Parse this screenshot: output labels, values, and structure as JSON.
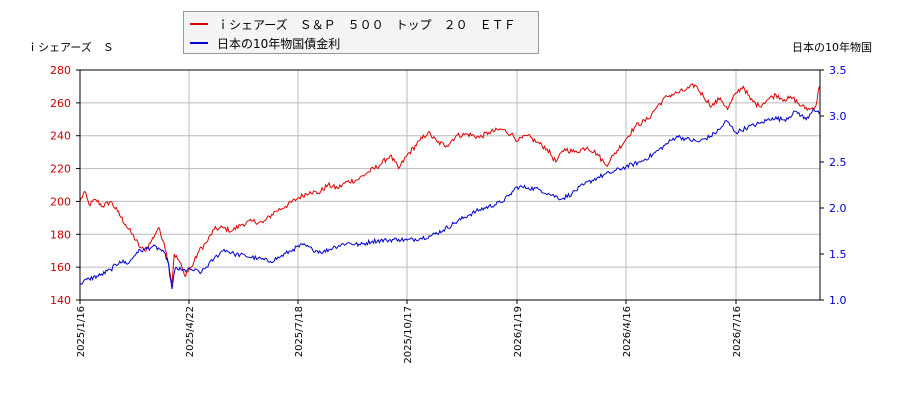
{
  "legend": {
    "series1": "ｉシェアーズ　Ｓ＆Ｐ　５００　トップ　２０　ＥＴＦ",
    "series2": "日本の10年物国債金利"
  },
  "axis_titles": {
    "left": "ｉシェアーズ　Ｓ",
    "right": "日本の10年物国"
  },
  "colors": {
    "series1": "#dd0000",
    "series2": "#0000cc",
    "grid": "#bbbbbb",
    "axis_left_text": "#cc0000",
    "axis_right_text": "#0000cc"
  },
  "chart_data": {
    "type": "line",
    "grid": true,
    "legend_position": "top-center",
    "x_ticks": [
      "2025/1/16",
      "2025/4/22",
      "2025/7/18",
      "2025/10/17",
      "2026/1/19",
      "2026/4/16",
      "2026/7/16"
    ],
    "y_left": {
      "lim": [
        140,
        280
      ],
      "ticks": [
        140,
        160,
        180,
        200,
        220,
        240,
        260,
        280
      ]
    },
    "y_right": {
      "lim": [
        1.0,
        3.5
      ],
      "ticks": [
        "1.0",
        "1.5",
        "2.0",
        "2.5",
        "3.0",
        "3.5"
      ]
    },
    "series": [
      {
        "name": "ｉシェアーズ　Ｓ＆Ｐ　５００　トップ　２０　ＥＴＦ",
        "axis": "left",
        "points": [
          [
            "2025-01-16",
            200
          ],
          [
            "2025-01-20",
            206
          ],
          [
            "2025-01-24",
            198
          ],
          [
            "2025-01-30",
            201
          ],
          [
            "2025-02-05",
            197
          ],
          [
            "2025-02-12",
            200
          ],
          [
            "2025-02-18",
            194
          ],
          [
            "2025-02-25",
            186
          ],
          [
            "2025-03-03",
            180
          ],
          [
            "2025-03-10",
            172
          ],
          [
            "2025-03-14",
            170
          ],
          [
            "2025-03-20",
            176
          ],
          [
            "2025-03-26",
            184
          ],
          [
            "2025-03-31",
            175
          ],
          [
            "2025-04-04",
            162
          ],
          [
            "2025-04-07",
            150
          ],
          [
            "2025-04-09",
            168
          ],
          [
            "2025-04-14",
            163
          ],
          [
            "2025-04-18",
            155
          ],
          [
            "2025-04-24",
            160
          ],
          [
            "2025-04-30",
            170
          ],
          [
            "2025-05-06",
            175
          ],
          [
            "2025-05-12",
            183
          ],
          [
            "2025-05-19",
            184
          ],
          [
            "2025-05-26",
            182
          ],
          [
            "2025-06-03",
            186
          ],
          [
            "2025-06-12",
            188
          ],
          [
            "2025-06-20",
            187
          ],
          [
            "2025-06-30",
            194
          ],
          [
            "2025-07-08",
            197
          ],
          [
            "2025-07-18",
            202
          ],
          [
            "2025-07-28",
            206
          ],
          [
            "2025-08-04",
            205
          ],
          [
            "2025-08-12",
            210
          ],
          [
            "2025-08-20",
            208
          ],
          [
            "2025-08-28",
            212
          ],
          [
            "2025-09-05",
            213
          ],
          [
            "2025-09-15",
            218
          ],
          [
            "2025-09-24",
            222
          ],
          [
            "2025-10-03",
            228
          ],
          [
            "2025-10-10",
            220
          ],
          [
            "2025-10-17",
            228
          ],
          [
            "2025-10-28",
            237
          ],
          [
            "2025-11-04",
            242
          ],
          [
            "2025-11-12",
            236
          ],
          [
            "2025-11-20",
            234
          ],
          [
            "2025-11-28",
            240
          ],
          [
            "2025-12-08",
            241
          ],
          [
            "2025-12-18",
            239
          ],
          [
            "2025-12-26",
            242
          ],
          [
            "2026-01-06",
            244
          ],
          [
            "2026-01-14",
            241
          ],
          [
            "2026-01-20",
            237
          ],
          [
            "2026-01-27",
            240
          ],
          [
            "2026-02-04",
            236
          ],
          [
            "2026-02-12",
            232
          ],
          [
            "2026-02-19",
            224
          ],
          [
            "2026-02-26",
            232
          ],
          [
            "2026-03-06",
            230
          ],
          [
            "2026-03-16",
            233
          ],
          [
            "2026-03-24",
            229
          ],
          [
            "2026-03-31",
            222
          ],
          [
            "2026-04-06",
            228
          ],
          [
            "2026-04-16",
            238
          ],
          [
            "2026-04-24",
            246
          ],
          [
            "2026-05-04",
            250
          ],
          [
            "2026-05-12",
            258
          ],
          [
            "2026-05-20",
            264
          ],
          [
            "2026-05-28",
            266
          ],
          [
            "2026-06-05",
            268
          ],
          [
            "2026-06-12",
            271
          ],
          [
            "2026-06-19",
            264
          ],
          [
            "2026-06-26",
            258
          ],
          [
            "2026-07-03",
            263
          ],
          [
            "2026-07-09",
            256
          ],
          [
            "2026-07-16",
            266
          ],
          [
            "2026-07-22",
            270
          ],
          [
            "2026-07-28",
            262
          ],
          [
            "2026-08-04",
            258
          ],
          [
            "2026-08-11",
            262
          ],
          [
            "2026-08-18",
            265
          ],
          [
            "2026-08-25",
            262
          ],
          [
            "2026-09-01",
            263
          ],
          [
            "2026-09-08",
            258
          ],
          [
            "2026-09-15",
            256
          ],
          [
            "2026-09-20",
            258
          ],
          [
            "2026-09-23",
            270
          ]
        ]
      },
      {
        "name": "日本の10年物国債金利",
        "axis": "right",
        "points": [
          [
            "2025-01-16",
            1.18
          ],
          [
            "2025-01-24",
            1.23
          ],
          [
            "2025-02-03",
            1.27
          ],
          [
            "2025-02-12",
            1.33
          ],
          [
            "2025-02-20",
            1.42
          ],
          [
            "2025-02-28",
            1.4
          ],
          [
            "2025-03-07",
            1.52
          ],
          [
            "2025-03-14",
            1.55
          ],
          [
            "2025-03-21",
            1.58
          ],
          [
            "2025-03-28",
            1.55
          ],
          [
            "2025-04-03",
            1.45
          ],
          [
            "2025-04-07",
            1.12
          ],
          [
            "2025-04-10",
            1.35
          ],
          [
            "2025-04-16",
            1.32
          ],
          [
            "2025-04-24",
            1.33
          ],
          [
            "2025-05-02",
            1.3
          ],
          [
            "2025-05-12",
            1.45
          ],
          [
            "2025-05-20",
            1.55
          ],
          [
            "2025-05-28",
            1.5
          ],
          [
            "2025-06-06",
            1.48
          ],
          [
            "2025-06-16",
            1.45
          ],
          [
            "2025-06-26",
            1.42
          ],
          [
            "2025-07-04",
            1.47
          ],
          [
            "2025-07-14",
            1.55
          ],
          [
            "2025-07-22",
            1.6
          ],
          [
            "2025-07-30",
            1.55
          ],
          [
            "2025-08-08",
            1.52
          ],
          [
            "2025-08-18",
            1.58
          ],
          [
            "2025-08-28",
            1.62
          ],
          [
            "2025-09-08",
            1.6
          ],
          [
            "2025-09-18",
            1.64
          ],
          [
            "2025-09-30",
            1.65
          ],
          [
            "2025-10-10",
            1.66
          ],
          [
            "2025-10-17",
            1.65
          ],
          [
            "2025-10-28",
            1.67
          ],
          [
            "2025-11-07",
            1.7
          ],
          [
            "2025-11-17",
            1.76
          ],
          [
            "2025-11-27",
            1.84
          ],
          [
            "2025-12-08",
            1.92
          ],
          [
            "2025-12-18",
            1.98
          ],
          [
            "2026-01-05",
            2.06
          ],
          [
            "2026-01-12",
            2.13
          ],
          [
            "2026-01-19",
            2.23
          ],
          [
            "2026-01-28",
            2.22
          ],
          [
            "2026-02-06",
            2.2
          ],
          [
            "2026-02-16",
            2.14
          ],
          [
            "2026-02-24",
            2.1
          ],
          [
            "2026-03-04",
            2.16
          ],
          [
            "2026-03-13",
            2.25
          ],
          [
            "2026-03-24",
            2.33
          ],
          [
            "2026-04-03",
            2.38
          ],
          [
            "2026-04-16",
            2.45
          ],
          [
            "2026-04-28",
            2.5
          ],
          [
            "2026-05-08",
            2.58
          ],
          [
            "2026-05-18",
            2.68
          ],
          [
            "2026-05-28",
            2.78
          ],
          [
            "2026-06-05",
            2.75
          ],
          [
            "2026-06-15",
            2.72
          ],
          [
            "2026-06-25",
            2.78
          ],
          [
            "2026-07-03",
            2.86
          ],
          [
            "2026-07-08",
            2.95
          ],
          [
            "2026-07-16",
            2.82
          ],
          [
            "2026-07-26",
            2.88
          ],
          [
            "2026-08-05",
            2.92
          ],
          [
            "2026-08-15",
            2.98
          ],
          [
            "2026-08-25",
            2.96
          ],
          [
            "2026-09-04",
            3.05
          ],
          [
            "2026-09-12",
            2.96
          ],
          [
            "2026-09-18",
            3.08
          ],
          [
            "2026-09-23",
            3.02
          ]
        ]
      }
    ]
  }
}
